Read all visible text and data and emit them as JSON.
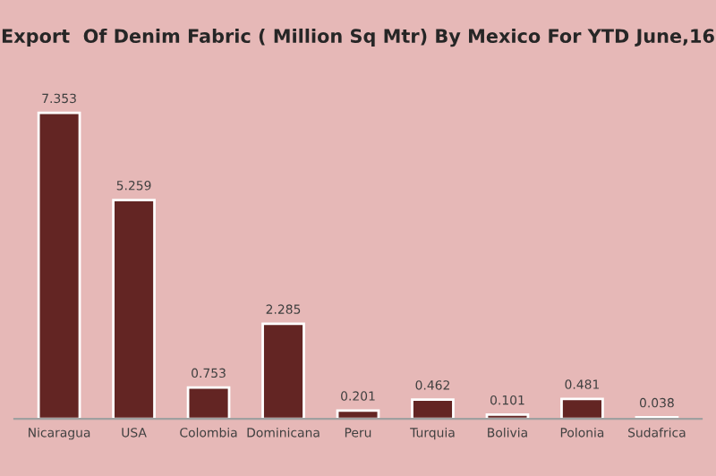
{
  "chart_data": {
    "type": "bar",
    "title": "Export  Of Denim Fabric ( Million Sq Mtr) By Mexico For YTD June,16",
    "categories": [
      "Nicaragua",
      "USA",
      "Colombia",
      "Dominicana",
      "Peru",
      "Turquia",
      "Bolivia",
      "Polonia",
      "Sudafrica"
    ],
    "values": [
      7.353,
      5.259,
      0.753,
      2.285,
      0.201,
      0.462,
      0.101,
      0.481,
      0.038
    ],
    "color": "#632523",
    "data_labels": true,
    "grid": false,
    "legend": false
  }
}
